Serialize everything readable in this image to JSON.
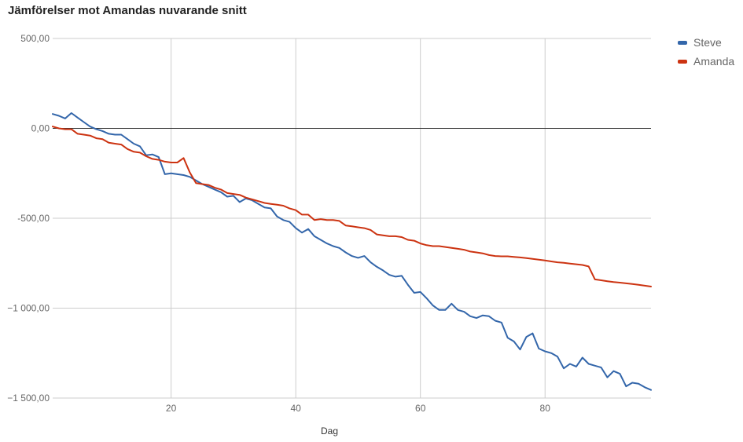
{
  "chart_data": {
    "type": "line",
    "title": "Jämförelser mot Amandas nuvarande snitt",
    "xlabel": "Dag",
    "ylabel": "",
    "xlim": [
      1,
      97
    ],
    "ylim": [
      -1500,
      500
    ],
    "x_ticks": [
      20,
      40,
      60,
      80
    ],
    "x_tick_labels": [
      "20",
      "40",
      "60",
      "80"
    ],
    "y_ticks": [
      500,
      0,
      -500,
      -1000,
      -1500
    ],
    "y_tick_labels": [
      "500,00",
      "0,00",
      "-500,00",
      "−1 000,00",
      "−1 500,00"
    ],
    "grid": true,
    "legend_position": "right",
    "series": [
      {
        "name": "Steve",
        "color": "#3366aa",
        "x": [
          1,
          2,
          3,
          4,
          5,
          6,
          7,
          8,
          9,
          10,
          11,
          12,
          13,
          14,
          15,
          16,
          17,
          18,
          19,
          20,
          21,
          22,
          23,
          24,
          25,
          26,
          27,
          28,
          29,
          30,
          31,
          32,
          33,
          34,
          35,
          36,
          37,
          38,
          39,
          40,
          41,
          42,
          43,
          44,
          45,
          46,
          47,
          48,
          49,
          50,
          51,
          52,
          53,
          54,
          55,
          56,
          57,
          58,
          59,
          60,
          61,
          62,
          63,
          64,
          65,
          66,
          67,
          68,
          69,
          70,
          71,
          72,
          73,
          74,
          75,
          76,
          77,
          78,
          79,
          80,
          81,
          82,
          83,
          84,
          85,
          86,
          87,
          88,
          89,
          90,
          91,
          92,
          93,
          94,
          95,
          96,
          97
        ],
        "values": [
          80,
          70,
          55,
          85,
          60,
          35,
          10,
          -5,
          -15,
          -30,
          -35,
          -35,
          -60,
          -85,
          -100,
          -150,
          -145,
          -160,
          -255,
          -250,
          -255,
          -260,
          -270,
          -290,
          -310,
          -325,
          -340,
          -355,
          -380,
          -375,
          -410,
          -390,
          -400,
          -420,
          -440,
          -445,
          -490,
          -510,
          -520,
          -555,
          -580,
          -560,
          -600,
          -620,
          -640,
          -655,
          -665,
          -690,
          -710,
          -720,
          -710,
          -745,
          -770,
          -790,
          -815,
          -825,
          -820,
          -870,
          -915,
          -910,
          -945,
          -985,
          -1010,
          -1010,
          -975,
          -1010,
          -1020,
          -1045,
          -1055,
          -1040,
          -1045,
          -1070,
          -1080,
          -1165,
          -1185,
          -1230,
          -1160,
          -1140,
          -1225,
          -1240,
          -1250,
          -1270,
          -1335,
          -1310,
          -1325,
          -1275,
          -1310,
          -1320,
          -1330,
          -1385,
          -1350,
          -1365,
          -1435,
          -1415,
          -1420,
          -1440,
          -1455
        ]
      },
      {
        "name": "Amanda",
        "color": "#cc3311",
        "x": [
          1,
          2,
          3,
          4,
          5,
          6,
          7,
          8,
          9,
          10,
          11,
          12,
          13,
          14,
          15,
          16,
          17,
          18,
          19,
          20,
          21,
          22,
          23,
          24,
          25,
          26,
          27,
          28,
          29,
          30,
          31,
          32,
          33,
          34,
          35,
          36,
          37,
          38,
          39,
          40,
          41,
          42,
          43,
          44,
          45,
          46,
          47,
          48,
          49,
          50,
          51,
          52,
          53,
          54,
          55,
          56,
          57,
          58,
          59,
          60,
          61,
          62,
          63,
          64,
          65,
          66,
          67,
          68,
          69,
          70,
          71,
          72,
          73,
          74,
          75,
          76,
          77,
          78,
          79,
          80,
          81,
          82,
          83,
          84,
          85,
          86,
          87,
          88,
          89,
          90,
          91,
          92,
          93,
          94,
          95,
          96,
          97
        ],
        "values": [
          10,
          0,
          -5,
          -5,
          -30,
          -35,
          -40,
          -55,
          -60,
          -80,
          -85,
          -90,
          -115,
          -130,
          -135,
          -155,
          -170,
          -175,
          -185,
          -190,
          -190,
          -165,
          -245,
          -305,
          -310,
          -315,
          -330,
          -340,
          -360,
          -365,
          -370,
          -385,
          -395,
          -405,
          -415,
          -420,
          -425,
          -430,
          -445,
          -455,
          -480,
          -480,
          -510,
          -505,
          -510,
          -510,
          -515,
          -540,
          -545,
          -550,
          -555,
          -565,
          -590,
          -595,
          -600,
          -600,
          -605,
          -620,
          -625,
          -640,
          -650,
          -655,
          -655,
          -660,
          -665,
          -670,
          -675,
          -685,
          -690,
          -695,
          -705,
          -710,
          -712,
          -712,
          -715,
          -718,
          -722,
          -726,
          -730,
          -735,
          -740,
          -745,
          -748,
          -752,
          -756,
          -760,
          -768,
          -840,
          -845,
          -850,
          -855,
          -858,
          -862,
          -866,
          -870,
          -875,
          -880
        ]
      }
    ]
  }
}
